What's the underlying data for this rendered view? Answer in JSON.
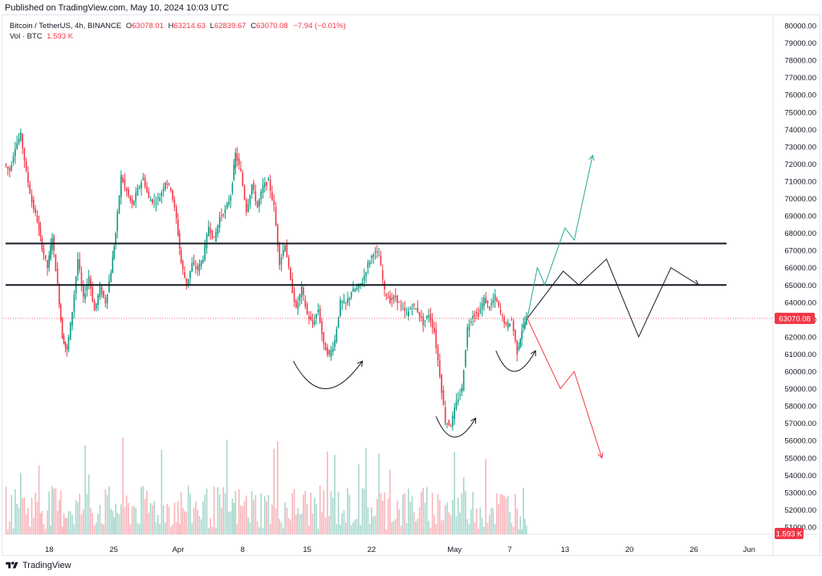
{
  "header": {
    "published": "Published on TradingView.com, May 10, 2024 10:03 UTC"
  },
  "legend": {
    "symbol": "Bitcoin / TetherUS, 4h, BINANCE",
    "open_label": "O",
    "open": "63078.01",
    "high_label": "H",
    "high": "63214.63",
    "low_label": "L",
    "low": "62839.67",
    "close_label": "C",
    "close": "63070.08",
    "change": "−7.94 (−0.01%)",
    "volume_label": "Vol · BTC",
    "volume": "1.593 K"
  },
  "footer": {
    "brand": "TradingView"
  },
  "colors": {
    "up": "#089981",
    "down": "#f23645",
    "up_light": "#a7d7cc",
    "down_light": "#f7b4b9",
    "forecast_up": "#26a69a",
    "forecast_down": "#f23645",
    "line": "#131722"
  },
  "chart_data": {
    "type": "candlestick",
    "symbol": "BTCUSDT",
    "timeframe": "4h",
    "exchange": "BINANCE",
    "y_axis": {
      "min": 50500,
      "max": 80500,
      "ticks": [
        51000,
        52000,
        53000,
        54000,
        55000,
        56000,
        57000,
        58000,
        59000,
        60000,
        61000,
        62000,
        63000,
        64000,
        65000,
        66000,
        67000,
        68000,
        69000,
        70000,
        71000,
        72000,
        73000,
        74000,
        75000,
        76000,
        77000,
        78000,
        79000,
        80000
      ]
    },
    "x_axis": {
      "start_day": 13,
      "end_day": 84,
      "ticks": [
        {
          "day": 18,
          "label": "18"
        },
        {
          "day": 25,
          "label": "25"
        },
        {
          "day": 32,
          "label": "Apr"
        },
        {
          "day": 39,
          "label": "8"
        },
        {
          "day": 46,
          "label": "15"
        },
        {
          "day": 53,
          "label": "22"
        },
        {
          "day": 62,
          "label": "May"
        },
        {
          "day": 68,
          "label": "7"
        },
        {
          "day": 74,
          "label": "13"
        },
        {
          "day": 81,
          "label": "20"
        },
        {
          "day": 88,
          "label": "26"
        },
        {
          "day": 94,
          "label": "Jun"
        }
      ]
    },
    "last_price": {
      "value": 63070.08,
      "label": "63070.08"
    },
    "last_volume_label": "1.593 K",
    "horizontal_levels": [
      67400,
      65000
    ],
    "price_path": [
      [
        13.2,
        72000
      ],
      [
        13.8,
        71600
      ],
      [
        14.4,
        73000
      ],
      [
        15,
        73700
      ],
      [
        15.6,
        71500
      ],
      [
        16.2,
        69800
      ],
      [
        16.8,
        68700
      ],
      [
        17.3,
        67200
      ],
      [
        17.9,
        66000
      ],
      [
        18.4,
        67800
      ],
      [
        19,
        65000
      ],
      [
        19.5,
        62000
      ],
      [
        20,
        61200
      ],
      [
        20.6,
        63500
      ],
      [
        21.2,
        66500
      ],
      [
        21.8,
        64200
      ],
      [
        22.4,
        65500
      ],
      [
        23,
        63500
      ],
      [
        23.6,
        64800
      ],
      [
        24.2,
        64000
      ],
      [
        24.8,
        65800
      ],
      [
        25.3,
        68000
      ],
      [
        25.9,
        71300
      ],
      [
        26.5,
        70400
      ],
      [
        27.1,
        69600
      ],
      [
        27.7,
        70500
      ],
      [
        28.3,
        71200
      ],
      [
        28.9,
        70000
      ],
      [
        29.5,
        69800
      ],
      [
        30.1,
        70100
      ],
      [
        30.7,
        71000
      ],
      [
        31.3,
        70600
      ],
      [
        31.9,
        68800
      ],
      [
        32.4,
        66300
      ],
      [
        33,
        65000
      ],
      [
        33.6,
        66200
      ],
      [
        34.2,
        65900
      ],
      [
        34.8,
        66600
      ],
      [
        35.4,
        68400
      ],
      [
        36,
        67600
      ],
      [
        36.6,
        68900
      ],
      [
        37.2,
        69300
      ],
      [
        37.8,
        70200
      ],
      [
        38.3,
        72600
      ],
      [
        38.9,
        71500
      ],
      [
        39.5,
        69300
      ],
      [
        40.1,
        70800
      ],
      [
        40.7,
        69500
      ],
      [
        41.3,
        70700
      ],
      [
        41.9,
        71000
      ],
      [
        42.5,
        69500
      ],
      [
        43.1,
        66300
      ],
      [
        43.7,
        67400
      ],
      [
        44.3,
        65200
      ],
      [
        44.9,
        63600
      ],
      [
        45.5,
        64800
      ],
      [
        46.1,
        63300
      ],
      [
        46.7,
        62700
      ],
      [
        47.3,
        63600
      ],
      [
        47.9,
        61500
      ],
      [
        48.5,
        60900
      ],
      [
        49.1,
        61800
      ],
      [
        49.7,
        64000
      ],
      [
        50.3,
        63900
      ],
      [
        50.9,
        64600
      ],
      [
        51.5,
        64800
      ],
      [
        52.1,
        65200
      ],
      [
        52.7,
        66200
      ],
      [
        53.3,
        66900
      ],
      [
        53.9,
        66700
      ],
      [
        54.5,
        64600
      ],
      [
        55.1,
        64100
      ],
      [
        55.7,
        64300
      ],
      [
        56.3,
        63700
      ],
      [
        56.9,
        63300
      ],
      [
        57.5,
        63800
      ],
      [
        58.1,
        63500
      ],
      [
        58.7,
        62800
      ],
      [
        59.3,
        63300
      ],
      [
        59.9,
        62300
      ],
      [
        60.5,
        59800
      ],
      [
        61.1,
        57100
      ],
      [
        61.7,
        56900
      ],
      [
        62.3,
        58200
      ],
      [
        62.9,
        59000
      ],
      [
        63.5,
        62500
      ],
      [
        64.1,
        63300
      ],
      [
        64.7,
        63300
      ],
      [
        65.3,
        64200
      ],
      [
        65.9,
        63700
      ],
      [
        66.5,
        64300
      ],
      [
        67.1,
        63400
      ],
      [
        67.7,
        62600
      ],
      [
        68.3,
        63000
      ],
      [
        68.9,
        61100
      ],
      [
        69.4,
        62400
      ],
      [
        69.9,
        63070
      ]
    ],
    "annotations": {
      "arcs": [
        {
          "from": [
            44.5,
            60600
          ],
          "mid": [
            48,
            59000
          ],
          "to": [
            52,
            60600
          ]
        },
        {
          "from": [
            60,
            57400
          ],
          "mid": [
            62,
            56200
          ],
          "to": [
            64.3,
            57300
          ]
        },
        {
          "from": [
            66.5,
            61200
          ],
          "mid": [
            68.5,
            60000
          ],
          "to": [
            70.8,
            61200
          ]
        }
      ],
      "forecast_neutral": [
        [
          69.9,
          63070
        ],
        [
          73.8,
          65800
        ],
        [
          75.5,
          65000
        ],
        [
          78.5,
          66500
        ],
        [
          82,
          62000
        ],
        [
          85.5,
          66000
        ],
        [
          88.5,
          65000
        ]
      ],
      "forecast_bullish": [
        [
          69.9,
          63070
        ],
        [
          71,
          66000
        ],
        [
          71.8,
          65000
        ],
        [
          74,
          68300
        ],
        [
          75,
          67600
        ],
        [
          77,
          72500
        ]
      ],
      "forecast_bearish": [
        [
          69.9,
          63070
        ],
        [
          73.5,
          59000
        ],
        [
          75,
          60000
        ],
        [
          78,
          55000
        ]
      ]
    }
  }
}
